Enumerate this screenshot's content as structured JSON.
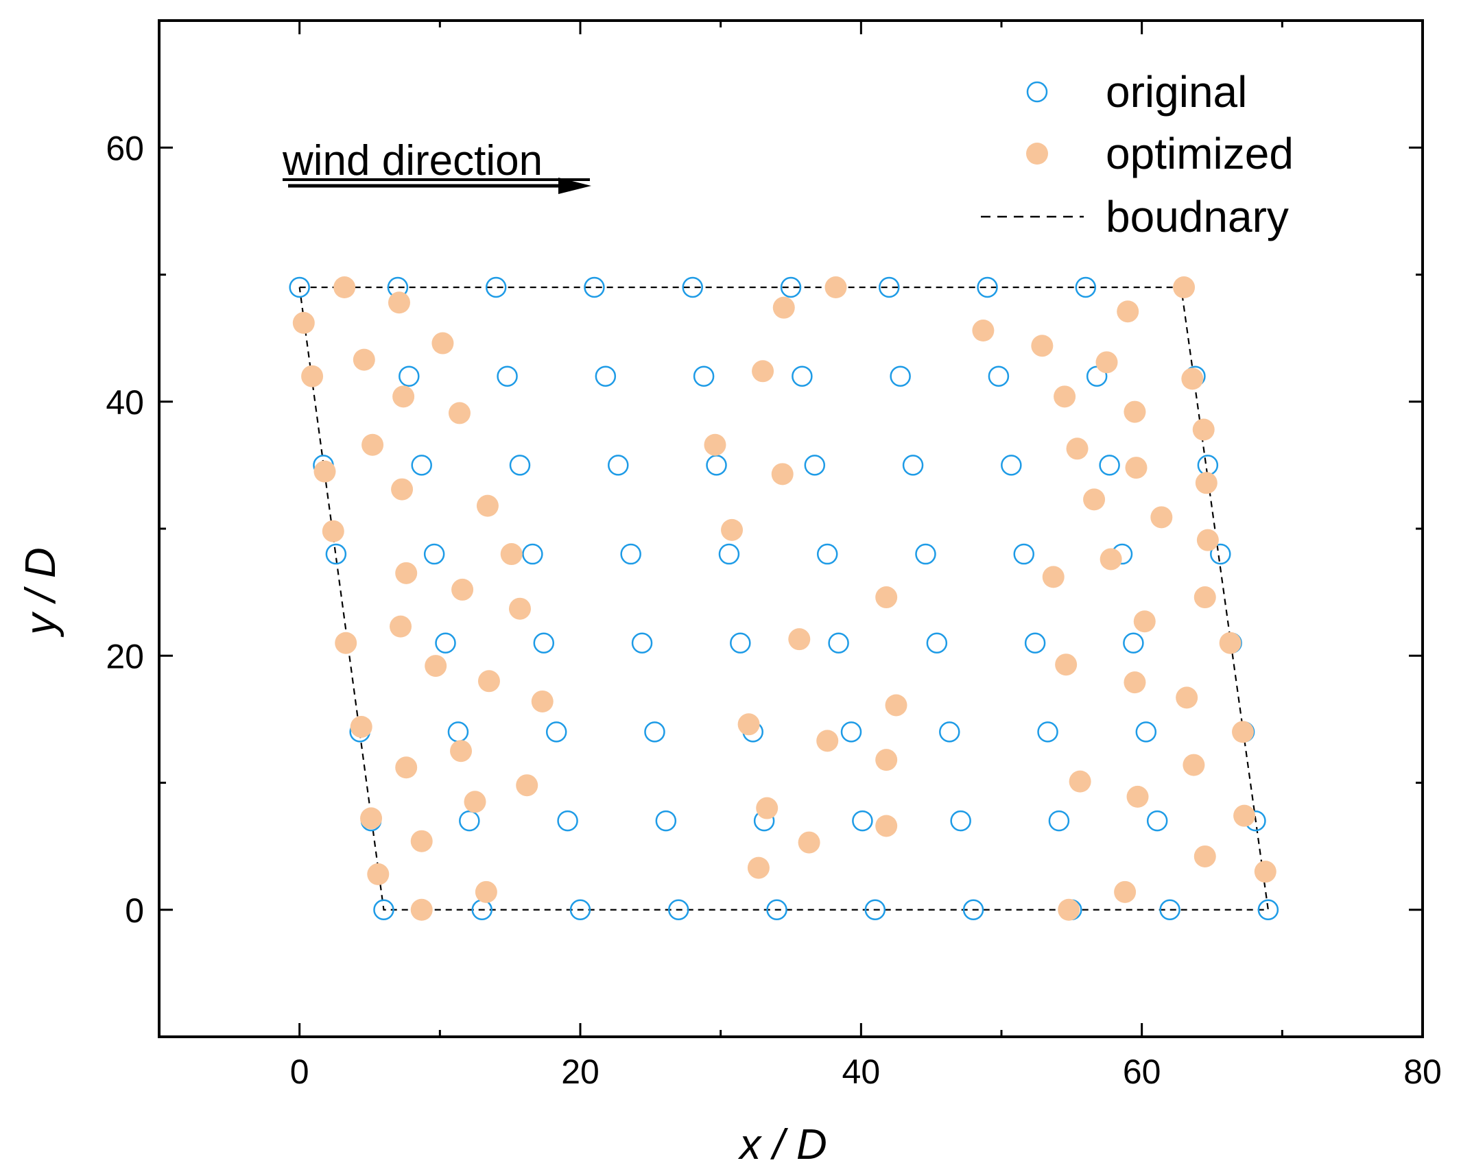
{
  "chart_data": {
    "type": "scatter",
    "xlabel": "x / D",
    "ylabel": "y / D",
    "xlim": [
      -10,
      80
    ],
    "ylim": [
      -10,
      70
    ],
    "x_ticks": [
      0,
      20,
      40,
      60,
      80
    ],
    "y_ticks": [
      0,
      20,
      40,
      60
    ],
    "grid": false,
    "legend_position": "top-right",
    "annotation": "wind direction",
    "colors": {
      "original": "#1e9be6",
      "optimized": "#f8c59a",
      "boundary": "#000000"
    },
    "series": [
      {
        "name": "original",
        "marker": "open-circle",
        "points": [
          [
            0,
            49
          ],
          [
            7,
            49
          ],
          [
            14,
            49
          ],
          [
            21,
            49
          ],
          [
            28,
            49
          ],
          [
            35,
            49
          ],
          [
            42,
            49
          ],
          [
            49,
            49
          ],
          [
            56,
            49
          ],
          [
            7.8,
            42
          ],
          [
            14.8,
            42
          ],
          [
            21.8,
            42
          ],
          [
            28.8,
            42
          ],
          [
            35.8,
            42
          ],
          [
            42.8,
            42
          ],
          [
            49.8,
            42
          ],
          [
            56.8,
            42
          ],
          [
            63.8,
            42
          ],
          [
            1.7,
            35
          ],
          [
            8.7,
            35
          ],
          [
            15.7,
            35
          ],
          [
            22.7,
            35
          ],
          [
            29.7,
            35
          ],
          [
            36.7,
            35
          ],
          [
            43.7,
            35
          ],
          [
            50.7,
            35
          ],
          [
            57.7,
            35
          ],
          [
            64.7,
            35
          ],
          [
            2.6,
            28
          ],
          [
            9.6,
            28
          ],
          [
            16.6,
            28
          ],
          [
            23.6,
            28
          ],
          [
            30.6,
            28
          ],
          [
            37.6,
            28
          ],
          [
            44.6,
            28
          ],
          [
            51.6,
            28
          ],
          [
            58.6,
            28
          ],
          [
            65.6,
            28
          ],
          [
            10.4,
            21
          ],
          [
            17.4,
            21
          ],
          [
            24.4,
            21
          ],
          [
            31.4,
            21
          ],
          [
            38.4,
            21
          ],
          [
            45.4,
            21
          ],
          [
            52.4,
            21
          ],
          [
            59.4,
            21
          ],
          [
            66.4,
            21
          ],
          [
            4.3,
            14
          ],
          [
            11.3,
            14
          ],
          [
            18.3,
            14
          ],
          [
            25.3,
            14
          ],
          [
            32.3,
            14
          ],
          [
            39.3,
            14
          ],
          [
            46.3,
            14
          ],
          [
            53.3,
            14
          ],
          [
            60.3,
            14
          ],
          [
            67.3,
            14
          ],
          [
            5.1,
            7
          ],
          [
            12.1,
            7
          ],
          [
            19.1,
            7
          ],
          [
            26.1,
            7
          ],
          [
            33.1,
            7
          ],
          [
            40.1,
            7
          ],
          [
            47.1,
            7
          ],
          [
            54.1,
            7
          ],
          [
            61.1,
            7
          ],
          [
            68.1,
            7
          ],
          [
            6,
            0
          ],
          [
            13,
            0
          ],
          [
            20,
            0
          ],
          [
            27,
            0
          ],
          [
            34,
            0
          ],
          [
            41,
            0
          ],
          [
            48,
            0
          ],
          [
            55,
            0
          ],
          [
            62,
            0
          ],
          [
            69,
            0
          ]
        ]
      },
      {
        "name": "optimized",
        "marker": "filled-circle",
        "points": [
          [
            3.2,
            49
          ],
          [
            7.1,
            47.8
          ],
          [
            38.2,
            49
          ],
          [
            63,
            49
          ],
          [
            0.3,
            46.2
          ],
          [
            10.2,
            44.6
          ],
          [
            34.5,
            47.4
          ],
          [
            48.7,
            45.6
          ],
          [
            52.9,
            44.4
          ],
          [
            59,
            47.1
          ],
          [
            0.9,
            42
          ],
          [
            4.6,
            43.3
          ],
          [
            7.4,
            40.4
          ],
          [
            11.4,
            39.1
          ],
          [
            33,
            42.4
          ],
          [
            54.5,
            40.4
          ],
          [
            57.5,
            43.1
          ],
          [
            59.5,
            39.2
          ],
          [
            63.6,
            41.8
          ],
          [
            5.2,
            36.6
          ],
          [
            7.3,
            33.1
          ],
          [
            13.4,
            31.8
          ],
          [
            29.6,
            36.6
          ],
          [
            34.4,
            34.3
          ],
          [
            55.4,
            36.3
          ],
          [
            56.6,
            32.3
          ],
          [
            59.6,
            34.8
          ],
          [
            64.4,
            37.8
          ],
          [
            64.6,
            33.6
          ],
          [
            61.4,
            30.9
          ],
          [
            1.8,
            34.5
          ],
          [
            2.4,
            29.8
          ],
          [
            7.6,
            26.5
          ],
          [
            11.6,
            25.2
          ],
          [
            15.1,
            28
          ],
          [
            15.7,
            23.7
          ],
          [
            30.8,
            29.9
          ],
          [
            41.8,
            24.6
          ],
          [
            53.7,
            26.2
          ],
          [
            57.8,
            27.6
          ],
          [
            64.7,
            29.1
          ],
          [
            60.2,
            22.7
          ],
          [
            64.5,
            24.6
          ],
          [
            3.3,
            21
          ],
          [
            7.2,
            22.3
          ],
          [
            9.7,
            19.2
          ],
          [
            13.5,
            18
          ],
          [
            17.3,
            16.4
          ],
          [
            35.6,
            21.3
          ],
          [
            42.5,
            16.1
          ],
          [
            54.6,
            19.3
          ],
          [
            59.5,
            17.9
          ],
          [
            63.2,
            16.7
          ],
          [
            66.3,
            21
          ],
          [
            4.4,
            14.4
          ],
          [
            7.6,
            11.2
          ],
          [
            11.5,
            12.5
          ],
          [
            16.2,
            9.8
          ],
          [
            32,
            14.6
          ],
          [
            37.6,
            13.3
          ],
          [
            41.8,
            11.8
          ],
          [
            55.6,
            10.1
          ],
          [
            63.7,
            11.4
          ],
          [
            67.2,
            14
          ],
          [
            5.1,
            7.2
          ],
          [
            8.7,
            5.4
          ],
          [
            12.5,
            8.5
          ],
          [
            33.3,
            8
          ],
          [
            36.3,
            5.3
          ],
          [
            41.8,
            6.6
          ],
          [
            59.7,
            8.9
          ],
          [
            67.3,
            7.4
          ],
          [
            64.5,
            4.2
          ],
          [
            5.6,
            2.8
          ],
          [
            8.7,
            0
          ],
          [
            13.3,
            1.4
          ],
          [
            32.7,
            3.3
          ],
          [
            54.8,
            0
          ],
          [
            58.8,
            1.4
          ],
          [
            68.8,
            3
          ]
        ]
      },
      {
        "name": "boudnary",
        "line": "dashed",
        "points": [
          [
            0,
            49
          ],
          [
            62.8,
            49
          ],
          [
            69,
            0
          ],
          [
            6,
            0
          ],
          [
            0,
            49
          ]
        ]
      }
    ]
  }
}
